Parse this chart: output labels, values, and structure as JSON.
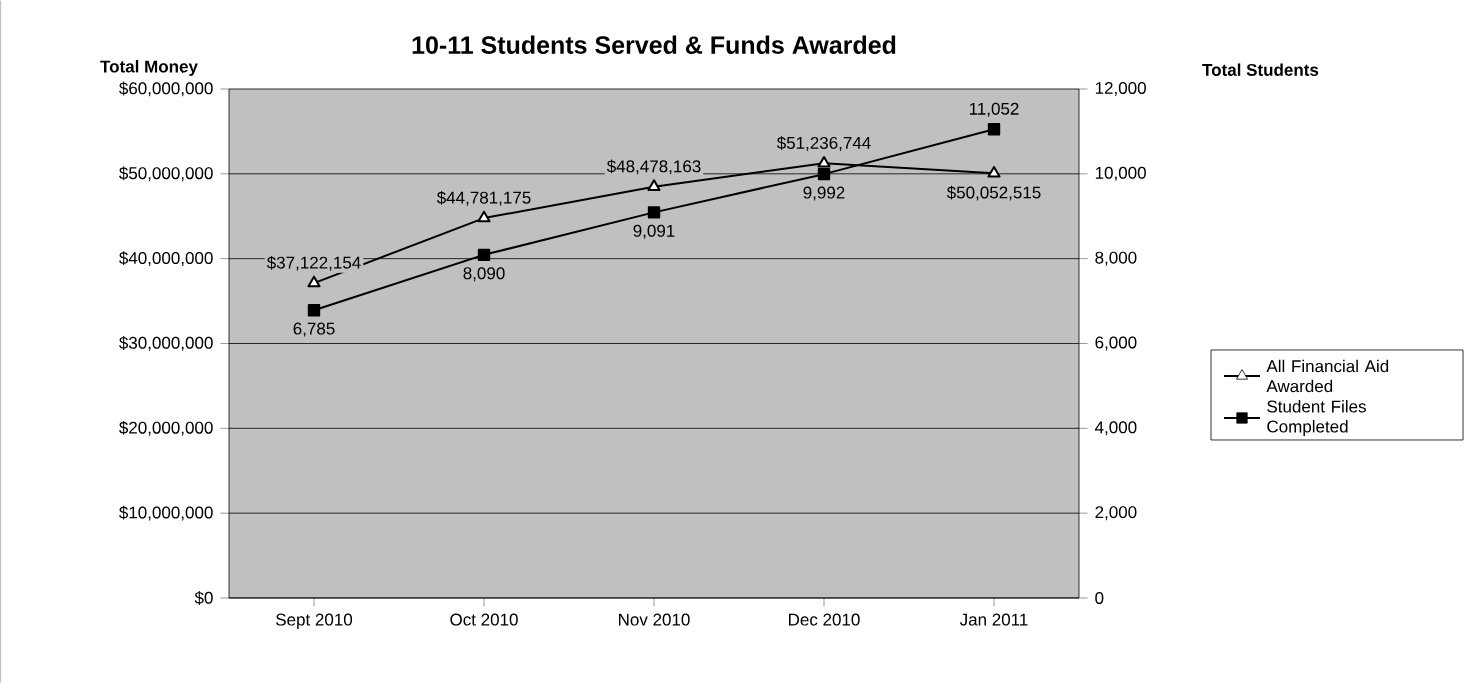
{
  "chart_data": {
    "type": "line",
    "title": "10-11 Students Served & Funds Awarded",
    "ylabel": "Total Money",
    "y2label": "Total Students",
    "categories": [
      "Sept 2010",
      "Oct 2010",
      "Nov 2010",
      "Dec 2010",
      "Jan 2011"
    ],
    "series": [
      {
        "name": "All Financial Aid Awarded",
        "color": "#000000",
        "marker": "triangle",
        "values": [
          37122154,
          44781175,
          48478163,
          51236744,
          50052515
        ],
        "value_labels": [
          "$37,122,154",
          "$44,781,175",
          "$48,478,163",
          "$51,236,744",
          "$50,052,515"
        ]
      },
      {
        "name": "Student Files Completed",
        "color": "#000000",
        "marker": "square",
        "axis": "y2",
        "values": [
          6785,
          8090,
          9091,
          9992,
          11052
        ],
        "value_labels": [
          "6,785",
          "8,090",
          "9,091",
          "9,992",
          "11,052"
        ]
      }
    ],
    "ylim": [
      0,
      60000000
    ],
    "yticks": [
      {
        "value": 0,
        "label": "$0"
      },
      {
        "value": 10000000,
        "label": "$10,000,000"
      },
      {
        "value": 20000000,
        "label": "$20,000,000"
      },
      {
        "value": 30000000,
        "label": "$30,000,000"
      },
      {
        "value": 40000000,
        "label": "$40,000,000"
      },
      {
        "value": 50000000,
        "label": "$50,000,000"
      },
      {
        "value": 60000000,
        "label": "$60,000,000"
      }
    ],
    "y2lim": [
      0,
      12000
    ],
    "y2ticks": [
      0,
      {
        "value": 2000,
        "label": "2,000"
      },
      {
        "value": 4000,
        "label": "4,000"
      },
      {
        "value": 6000,
        "label": "6,000"
      },
      {
        "value": 8000,
        "label": "8,000"
      },
      {
        "value": 10000,
        "label": "10,000"
      },
      {
        "value": 12000,
        "label": "12,000"
      }
    ],
    "grid": "y",
    "legend": "right"
  }
}
